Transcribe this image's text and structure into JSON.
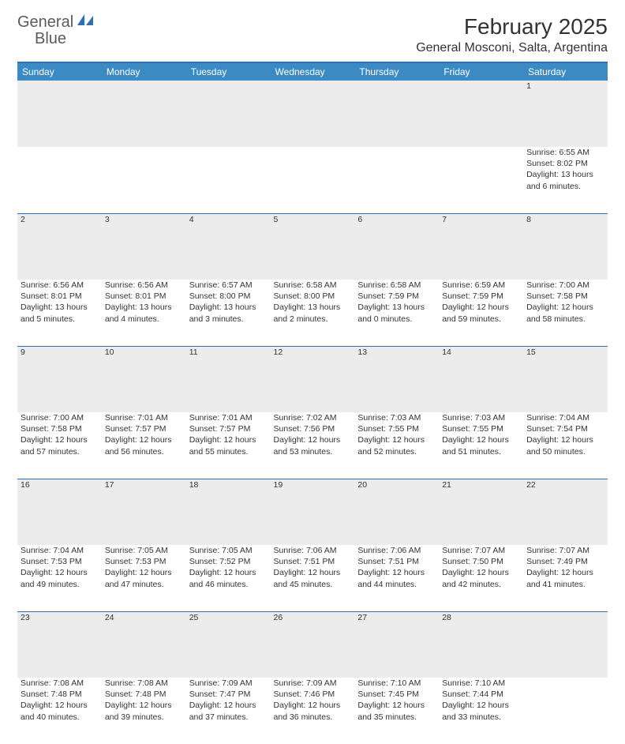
{
  "brand": {
    "word1": "General",
    "word2": "Blue"
  },
  "title": "February 2025",
  "location": "General Mosconi, Salta, Argentina",
  "colors": {
    "header_bg": "#3b8ac4",
    "rule": "#2f6fb3",
    "daynum_bg": "#ececec",
    "text": "#333333",
    "brand_gray": "#5a5a5a",
    "brand_blue": "#2f6fb3"
  },
  "weekdays": [
    "Sunday",
    "Monday",
    "Tuesday",
    "Wednesday",
    "Thursday",
    "Friday",
    "Saturday"
  ],
  "weeks": [
    {
      "nums": [
        "",
        "",
        "",
        "",
        "",
        "",
        "1"
      ],
      "cells": [
        null,
        null,
        null,
        null,
        null,
        null,
        {
          "sunrise": "6:55 AM",
          "sunset": "8:02 PM",
          "daylight": "13 hours and 6 minutes."
        }
      ]
    },
    {
      "nums": [
        "2",
        "3",
        "4",
        "5",
        "6",
        "7",
        "8"
      ],
      "cells": [
        {
          "sunrise": "6:56 AM",
          "sunset": "8:01 PM",
          "daylight": "13 hours and 5 minutes."
        },
        {
          "sunrise": "6:56 AM",
          "sunset": "8:01 PM",
          "daylight": "13 hours and 4 minutes."
        },
        {
          "sunrise": "6:57 AM",
          "sunset": "8:00 PM",
          "daylight": "13 hours and 3 minutes."
        },
        {
          "sunrise": "6:58 AM",
          "sunset": "8:00 PM",
          "daylight": "13 hours and 2 minutes."
        },
        {
          "sunrise": "6:58 AM",
          "sunset": "7:59 PM",
          "daylight": "13 hours and 0 minutes."
        },
        {
          "sunrise": "6:59 AM",
          "sunset": "7:59 PM",
          "daylight": "12 hours and 59 minutes."
        },
        {
          "sunrise": "7:00 AM",
          "sunset": "7:58 PM",
          "daylight": "12 hours and 58 minutes."
        }
      ]
    },
    {
      "nums": [
        "9",
        "10",
        "11",
        "12",
        "13",
        "14",
        "15"
      ],
      "cells": [
        {
          "sunrise": "7:00 AM",
          "sunset": "7:58 PM",
          "daylight": "12 hours and 57 minutes."
        },
        {
          "sunrise": "7:01 AM",
          "sunset": "7:57 PM",
          "daylight": "12 hours and 56 minutes."
        },
        {
          "sunrise": "7:01 AM",
          "sunset": "7:57 PM",
          "daylight": "12 hours and 55 minutes."
        },
        {
          "sunrise": "7:02 AM",
          "sunset": "7:56 PM",
          "daylight": "12 hours and 53 minutes."
        },
        {
          "sunrise": "7:03 AM",
          "sunset": "7:55 PM",
          "daylight": "12 hours and 52 minutes."
        },
        {
          "sunrise": "7:03 AM",
          "sunset": "7:55 PM",
          "daylight": "12 hours and 51 minutes."
        },
        {
          "sunrise": "7:04 AM",
          "sunset": "7:54 PM",
          "daylight": "12 hours and 50 minutes."
        }
      ]
    },
    {
      "nums": [
        "16",
        "17",
        "18",
        "19",
        "20",
        "21",
        "22"
      ],
      "cells": [
        {
          "sunrise": "7:04 AM",
          "sunset": "7:53 PM",
          "daylight": "12 hours and 49 minutes."
        },
        {
          "sunrise": "7:05 AM",
          "sunset": "7:53 PM",
          "daylight": "12 hours and 47 minutes."
        },
        {
          "sunrise": "7:05 AM",
          "sunset": "7:52 PM",
          "daylight": "12 hours and 46 minutes."
        },
        {
          "sunrise": "7:06 AM",
          "sunset": "7:51 PM",
          "daylight": "12 hours and 45 minutes."
        },
        {
          "sunrise": "7:06 AM",
          "sunset": "7:51 PM",
          "daylight": "12 hours and 44 minutes."
        },
        {
          "sunrise": "7:07 AM",
          "sunset": "7:50 PM",
          "daylight": "12 hours and 42 minutes."
        },
        {
          "sunrise": "7:07 AM",
          "sunset": "7:49 PM",
          "daylight": "12 hours and 41 minutes."
        }
      ]
    },
    {
      "nums": [
        "23",
        "24",
        "25",
        "26",
        "27",
        "28",
        ""
      ],
      "cells": [
        {
          "sunrise": "7:08 AM",
          "sunset": "7:48 PM",
          "daylight": "12 hours and 40 minutes."
        },
        {
          "sunrise": "7:08 AM",
          "sunset": "7:48 PM",
          "daylight": "12 hours and 39 minutes."
        },
        {
          "sunrise": "7:09 AM",
          "sunset": "7:47 PM",
          "daylight": "12 hours and 37 minutes."
        },
        {
          "sunrise": "7:09 AM",
          "sunset": "7:46 PM",
          "daylight": "12 hours and 36 minutes."
        },
        {
          "sunrise": "7:10 AM",
          "sunset": "7:45 PM",
          "daylight": "12 hours and 35 minutes."
        },
        {
          "sunrise": "7:10 AM",
          "sunset": "7:44 PM",
          "daylight": "12 hours and 33 minutes."
        },
        null
      ]
    }
  ],
  "labels": {
    "sunrise": "Sunrise:",
    "sunset": "Sunset:",
    "daylight": "Daylight:"
  }
}
